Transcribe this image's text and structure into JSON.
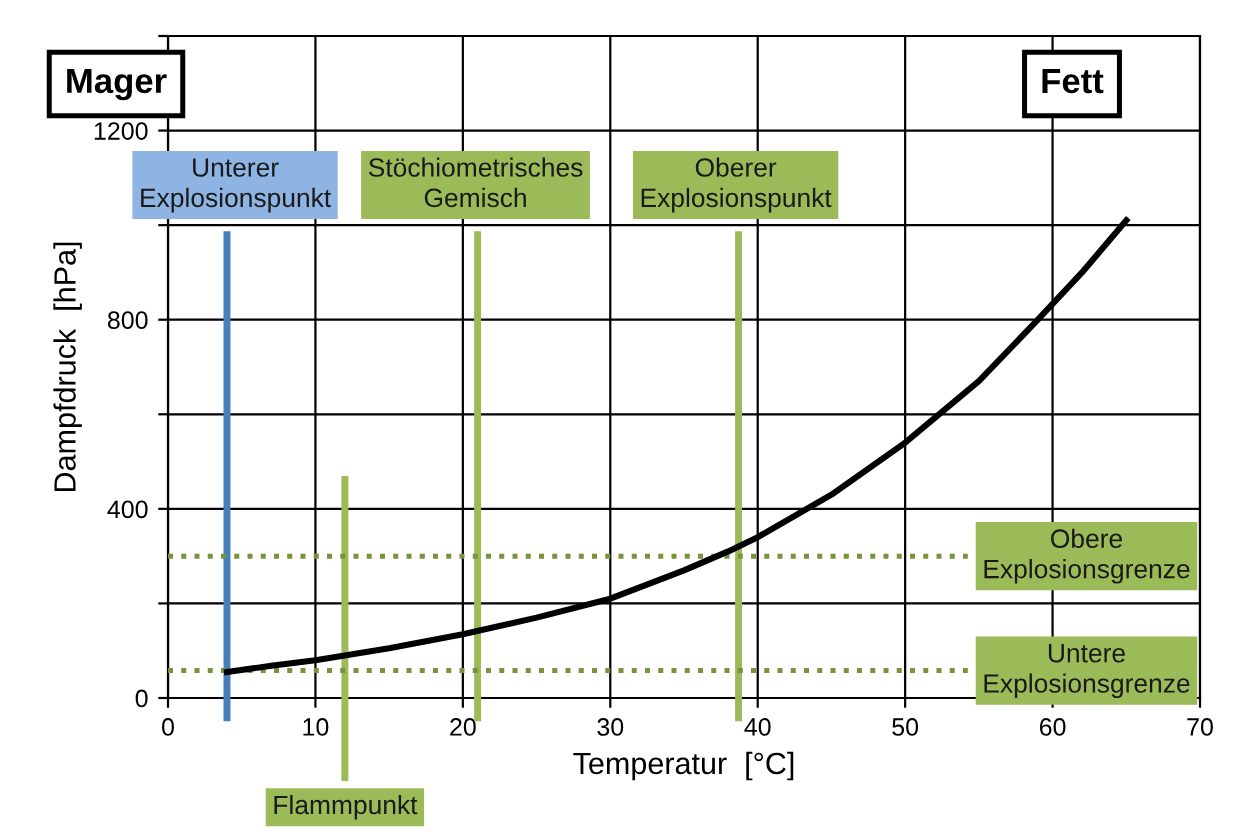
{
  "chart_data": {
    "type": "line",
    "xlabel": "Temperatur  [°C]",
    "ylabel": "Dampfdruck  [hPa]",
    "x": [
      4,
      7,
      10,
      15,
      20,
      25,
      30,
      35,
      38,
      40,
      45,
      50,
      55,
      59,
      62,
      65
    ],
    "series": [
      {
        "color": "#000000",
        "values": [
          55,
          68,
          80,
          105,
          135,
          170,
          210,
          270,
          310,
          340,
          430,
          540,
          670,
          800,
          900,
          1010
        ]
      }
    ],
    "xlim": [
      0,
      70
    ],
    "xticks": [
      0,
      10,
      20,
      30,
      40,
      50,
      60,
      70
    ],
    "ylim": [
      0,
      1400
    ],
    "yticks": [
      0,
      {
        "value": 200,
        "label": null
      },
      400,
      {
        "value": 600,
        "label": null
      },
      800,
      {
        "value": 1000,
        "label": null
      },
      1200,
      {
        "value": 1400,
        "label": null
      }
    ],
    "grid": true,
    "marker": "none",
    "line_style": "solid",
    "ref_lines": [
      {
        "axis": "x",
        "value": 4,
        "label": "Unterer\nExplosionspunkt",
        "color": "#4a7ebb"
      },
      {
        "axis": "x",
        "value": 12,
        "label": "Flammpunkt",
        "color": "#9bbb59"
      },
      {
        "axis": "x",
        "value": 21,
        "label": "Stöchiometrisches\nGemisch",
        "color": "#9bbb59"
      },
      {
        "axis": "x",
        "value": 38.7,
        "label": "Oberer\nExplosionspunkt",
        "color": "#9bbb59"
      },
      {
        "axis": "y",
        "value": 300,
        "label": "Obere\nExplosionsgrenze",
        "color": "#77933c",
        "line_style": "dotted"
      },
      {
        "axis": "y",
        "value": 58,
        "label": "Untere\nExplosionsgrenze",
        "color": "#77933c",
        "line_style": "dotted"
      }
    ],
    "annotations": [
      "Mager",
      "Fett"
    ]
  }
}
